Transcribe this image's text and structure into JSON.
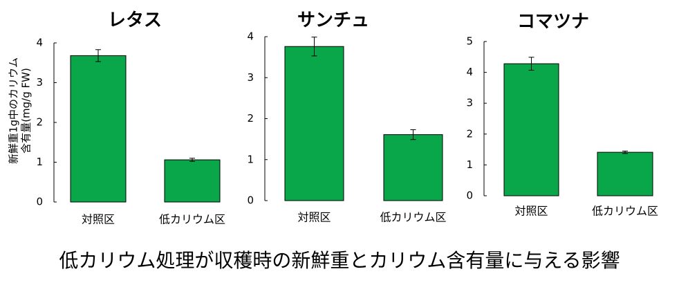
{
  "chart_data": [
    {
      "type": "bar",
      "title": "レタス",
      "ylabel": [
        "新鮮重1g中のカリウム",
        "含有量(mg/g FW)"
      ],
      "categories": [
        "対照区",
        "低カリウム区"
      ],
      "series": [
        {
          "color": "#0aa64a",
          "values": [
            3.68,
            1.06
          ],
          "errors": [
            0.15,
            0.04
          ]
        }
      ],
      "ylim": [
        0,
        4
      ],
      "yticks": [
        0,
        1,
        2,
        3,
        4
      ]
    },
    {
      "type": "bar",
      "title": "サンチュ",
      "categories": [
        "対照区",
        "低カリウム区"
      ],
      "series": [
        {
          "color": "#0aa64a",
          "values": [
            3.76,
            1.61
          ],
          "errors": [
            0.23,
            0.12
          ]
        }
      ],
      "ylim": [
        0,
        4
      ],
      "yticks": [
        0,
        1,
        2,
        3,
        4
      ]
    },
    {
      "type": "bar",
      "title": "コマツナ",
      "categories": [
        "対照区",
        "低カリウム区"
      ],
      "series": [
        {
          "color": "#0aa64a",
          "values": [
            4.28,
            1.41
          ],
          "errors": [
            0.21,
            0.04
          ]
        }
      ],
      "ylim": [
        0,
        5
      ],
      "yticks": [
        0,
        1,
        2,
        3,
        4,
        5
      ]
    }
  ],
  "caption": "低カリウム処理が収穫時の新鮮重とカリウム含有量に与える影響"
}
